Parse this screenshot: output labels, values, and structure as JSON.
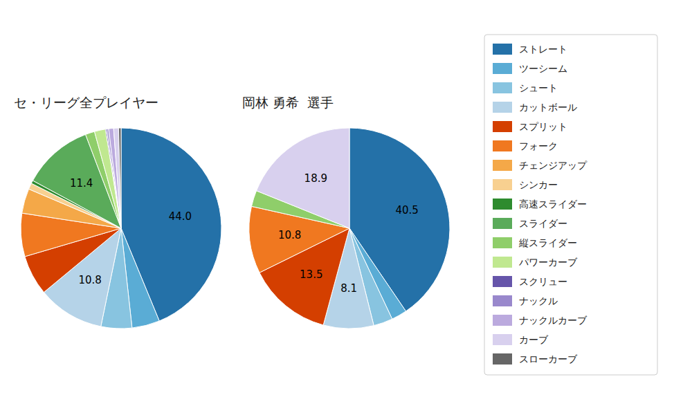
{
  "chart_data": [
    {
      "type": "pie",
      "title": "セ・リーグ全プレイヤー",
      "categories": [
        "ストレート",
        "ツーシーム",
        "シュート",
        "カットボール",
        "スプリット",
        "フォーク",
        "チェンジアップ",
        "シンカー",
        "高速スライダー",
        "スライダー",
        "縦スライダー",
        "パワーカーブ",
        "スクリュー",
        "ナックル",
        "ナックルカーブ",
        "カーブ",
        "スローカーブ"
      ],
      "values": [
        44.0,
        4.5,
        5.0,
        10.8,
        6.5,
        7.0,
        4.0,
        1.0,
        0.5,
        11.4,
        1.5,
        1.8,
        0.2,
        0.3,
        0.8,
        0.8,
        0.4
      ],
      "value_labels": [
        "44.0",
        null,
        null,
        "10.8",
        null,
        null,
        null,
        null,
        null,
        "11.4",
        null,
        null,
        null,
        null,
        null,
        null,
        null
      ],
      "colors": [
        "#2471a8",
        "#5aacd5",
        "#88c4e0",
        "#b5d3e8",
        "#d43f00",
        "#f07820",
        "#f4a848",
        "#f8d090",
        "#2e8b2e",
        "#5aab5a",
        "#8fce6a",
        "#c0e890",
        "#6655aa",
        "#9988cc",
        "#bbaade",
        "#d8d0ee",
        "#666666"
      ],
      "data_labels": true,
      "legend": "right"
    },
    {
      "type": "pie",
      "title": "岡林 勇希  選手",
      "categories": [
        "ストレート",
        "ツーシーム",
        "シュート",
        "カットボール",
        "スプリット",
        "フォーク",
        "チェンジアップ",
        "シンカー",
        "高速スライダー",
        "スライダー",
        "縦スライダー",
        "パワーカーブ",
        "スクリュー",
        "ナックル",
        "ナックルカーブ",
        "カーブ",
        "スローカーブ"
      ],
      "values": [
        40.5,
        2.5,
        3.1,
        8.1,
        13.5,
        10.8,
        0.0,
        0.0,
        0.0,
        0.0,
        2.6,
        0.0,
        0.0,
        0.0,
        0.0,
        18.9,
        0.0
      ],
      "value_labels": [
        "40.5",
        null,
        null,
        "8.1",
        "13.5",
        "10.8",
        null,
        null,
        null,
        null,
        null,
        null,
        null,
        null,
        null,
        "18.9",
        null
      ],
      "colors": [
        "#2471a8",
        "#5aacd5",
        "#88c4e0",
        "#b5d3e8",
        "#d43f00",
        "#f07820",
        "#f4a848",
        "#f8d090",
        "#2e8b2e",
        "#5aab5a",
        "#8fce6a",
        "#c0e890",
        "#6655aa",
        "#9988cc",
        "#bbaade",
        "#d8d0ee",
        "#666666"
      ],
      "data_labels": true
    }
  ]
}
